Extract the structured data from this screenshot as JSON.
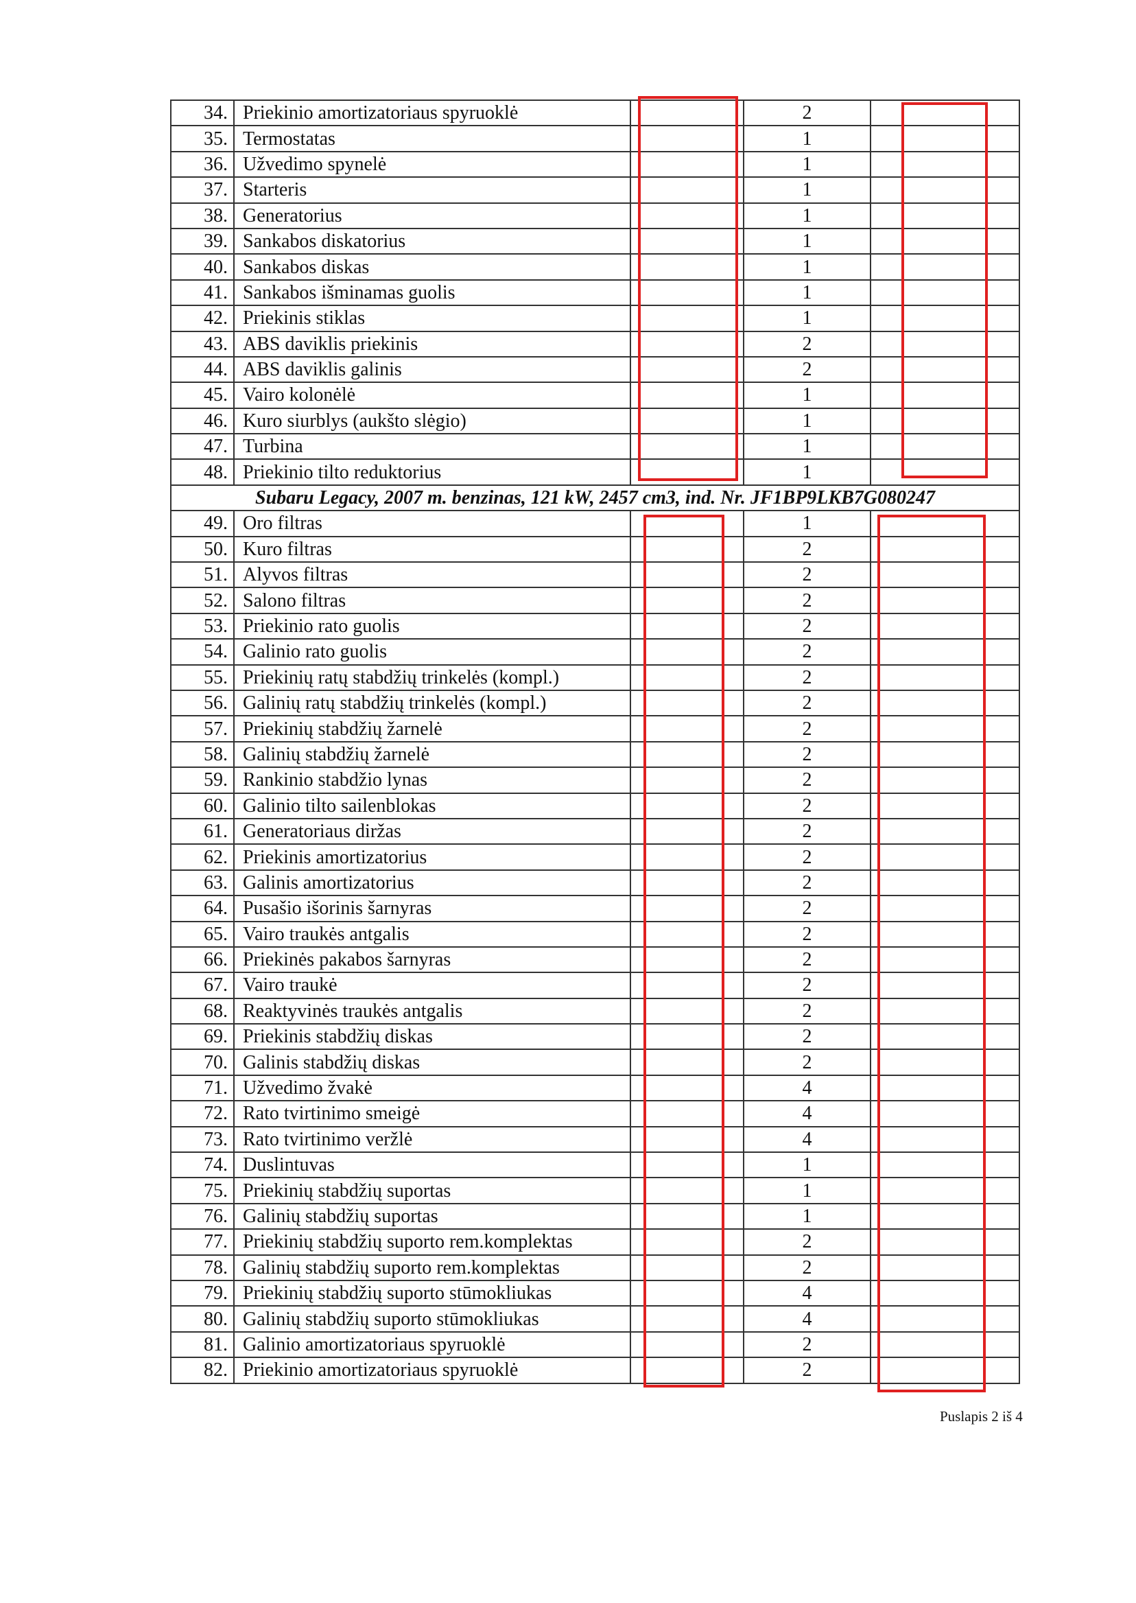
{
  "table": {
    "rows_a": [
      {
        "no": "34.",
        "name": "Priekinio amortizatoriaus spyruoklė",
        "qty": "2"
      },
      {
        "no": "35.",
        "name": "Termostatas",
        "qty": "1"
      },
      {
        "no": "36.",
        "name": "Užvedimo spynelė",
        "qty": "1"
      },
      {
        "no": "37.",
        "name": "Starteris",
        "qty": "1"
      },
      {
        "no": "38.",
        "name": "Generatorius",
        "qty": "1"
      },
      {
        "no": "39.",
        "name": "Sankabos diskatorius",
        "qty": "1"
      },
      {
        "no": "40.",
        "name": "Sankabos diskas",
        "qty": "1"
      },
      {
        "no": "41.",
        "name": "Sankabos išminamas guolis",
        "qty": "1"
      },
      {
        "no": "42.",
        "name": "Priekinis stiklas",
        "qty": "1"
      },
      {
        "no": "43.",
        "name": "ABS daviklis priekinis",
        "qty": "2"
      },
      {
        "no": "44.",
        "name": "ABS daviklis galinis",
        "qty": "2"
      },
      {
        "no": "45.",
        "name": "Vairo kolonėlė",
        "qty": "1"
      },
      {
        "no": "46.",
        "name": "Kuro siurblys (aukšto slėgio)",
        "qty": "1"
      },
      {
        "no": "47.",
        "name": "Turbina",
        "qty": "1"
      },
      {
        "no": "48.",
        "name": "Priekinio tilto reduktorius",
        "qty": "1"
      }
    ],
    "section_title": "Subaru Legacy, 2007 m. benzinas, 121  kW, 2457 cm3, ind. Nr. JF1BP9LKB7G080247",
    "rows_b": [
      {
        "no": "49.",
        "name": "Oro filtras",
        "qty": "1"
      },
      {
        "no": "50.",
        "name": "Kuro filtras",
        "qty": "2"
      },
      {
        "no": "51.",
        "name": "Alyvos filtras",
        "qty": "2"
      },
      {
        "no": "52.",
        "name": "Salono filtras",
        "qty": "2"
      },
      {
        "no": "53.",
        "name": "Priekinio rato guolis",
        "qty": "2"
      },
      {
        "no": "54.",
        "name": "Galinio rato guolis",
        "qty": "2"
      },
      {
        "no": "55.",
        "name": "Priekinių ratų stabdžių trinkelės (kompl.)",
        "qty": "2"
      },
      {
        "no": "56.",
        "name": "Galinių ratų stabdžių trinkelės (kompl.)",
        "qty": "2"
      },
      {
        "no": "57.",
        "name": "Priekinių stabdžių žarnelė",
        "qty": "2"
      },
      {
        "no": "58.",
        "name": "Galinių stabdžių žarnelė",
        "qty": "2"
      },
      {
        "no": "59.",
        "name": "Rankinio stabdžio lynas",
        "qty": "2"
      },
      {
        "no": "60.",
        "name": "Galinio tilto sailenblokas",
        "qty": "2"
      },
      {
        "no": "61.",
        "name": "Generatoriaus diržas",
        "qty": "2"
      },
      {
        "no": "62.",
        "name": "Priekinis amortizatorius",
        "qty": "2"
      },
      {
        "no": "63.",
        "name": "Galinis amortizatorius",
        "qty": "2"
      },
      {
        "no": "64.",
        "name": "Pusašio išorinis šarnyras",
        "qty": "2"
      },
      {
        "no": "65.",
        "name": "Vairo traukės antgalis",
        "qty": "2"
      },
      {
        "no": "66.",
        "name": "Priekinės pakabos šarnyras",
        "qty": "2"
      },
      {
        "no": "67.",
        "name": "Vairo traukė",
        "qty": "2"
      },
      {
        "no": "68.",
        "name": "Reaktyvinės traukės antgalis",
        "qty": "2"
      },
      {
        "no": "69.",
        "name": "Priekinis stabdžių diskas",
        "qty": "2"
      },
      {
        "no": "70.",
        "name": "Galinis stabdžių diskas",
        "qty": "2"
      },
      {
        "no": "71.",
        "name": "Užvedimo žvakė",
        "qty": "4"
      },
      {
        "no": "72.",
        "name": "Rato tvirtinimo smeigė",
        "qty": "4"
      },
      {
        "no": "73.",
        "name": "Rato tvirtinimo veržlė",
        "qty": "4"
      },
      {
        "no": "74.",
        "name": "Duslintuvas",
        "qty": "1"
      },
      {
        "no": "75.",
        "name": "Priekinių stabdžių suportas",
        "qty": "1"
      },
      {
        "no": "76.",
        "name": "Galinių stabdžių suportas",
        "qty": "1"
      },
      {
        "no": "77.",
        "name": "Priekinių stabdžių suporto rem.komplektas",
        "qty": "2"
      },
      {
        "no": "78.",
        "name": "Galinių stabdžių suporto rem.komplektas",
        "qty": "2"
      },
      {
        "no": "79.",
        "name": "Priekinių stabdžių suporto stūmokliukas",
        "qty": "4"
      },
      {
        "no": "80.",
        "name": "Galinių stabdžių suporto stūmokliukas",
        "qty": "4"
      },
      {
        "no": "81.",
        "name": "Galinio amortizatoriaus spyruoklė",
        "qty": "2"
      },
      {
        "no": "82.",
        "name": "Priekinio amortizatoriaus spyruoklė",
        "qty": "2"
      }
    ]
  },
  "redaction_color": "#e02020",
  "footer": {
    "page": "Puslapis 2 iš 4"
  }
}
